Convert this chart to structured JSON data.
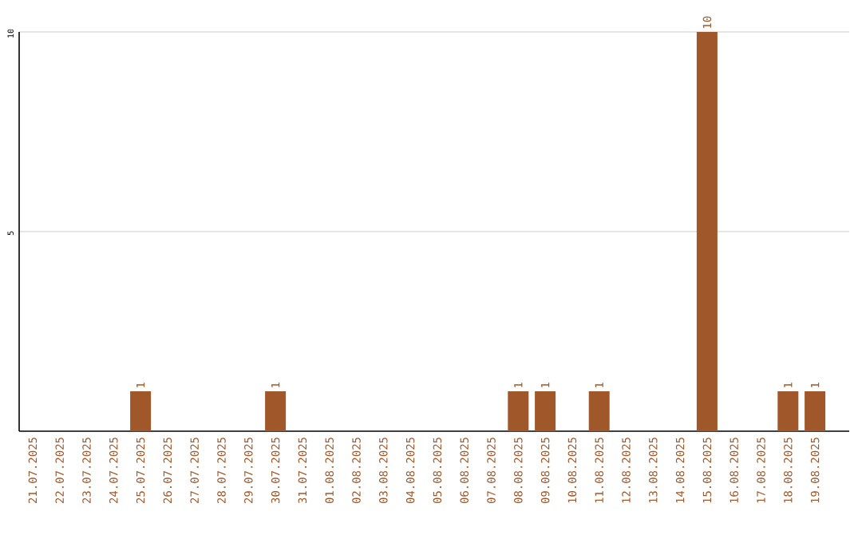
{
  "chart_data": {
    "type": "bar",
    "categories": [
      "21.07.2025",
      "22.07.2025",
      "23.07.2025",
      "24.07.2025",
      "25.07.2025",
      "26.07.2025",
      "27.07.2025",
      "28.07.2025",
      "29.07.2025",
      "30.07.2025",
      "31.07.2025",
      "01.08.2025",
      "02.08.2025",
      "03.08.2025",
      "04.08.2025",
      "05.08.2025",
      "06.08.2025",
      "07.08.2025",
      "08.08.2025",
      "09.08.2025",
      "10.08.2025",
      "11.08.2025",
      "12.08.2025",
      "13.08.2025",
      "14.08.2025",
      "15.08.2025",
      "16.08.2025",
      "17.08.2025",
      "18.08.2025",
      "19.08.2025"
    ],
    "values": [
      0,
      0,
      0,
      0,
      1,
      0,
      0,
      0,
      0,
      1,
      0,
      0,
      0,
      0,
      0,
      0,
      0,
      0,
      1,
      1,
      0,
      1,
      0,
      0,
      0,
      10,
      0,
      0,
      1,
      1
    ],
    "value_labels": [
      null,
      null,
      null,
      null,
      "1",
      null,
      null,
      null,
      null,
      "1",
      null,
      null,
      null,
      null,
      null,
      null,
      null,
      null,
      "1",
      "1",
      null,
      "1",
      null,
      null,
      null,
      "10",
      null,
      null,
      "1",
      "1"
    ],
    "color": "#a0582a",
    "ylim": [
      0,
      10
    ],
    "yticks": [
      5,
      10
    ],
    "grid": "y",
    "legend": false
  }
}
